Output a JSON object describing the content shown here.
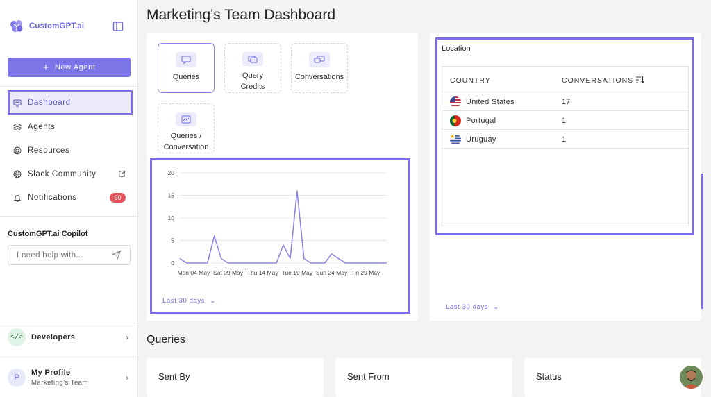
{
  "brand": {
    "name": "CustomGPT.ai"
  },
  "sidebar": {
    "new_agent_label": "New Agent",
    "items": [
      {
        "label": "Dashboard",
        "icon": "dashboard-icon",
        "active": true
      },
      {
        "label": "Agents",
        "icon": "layers-icon"
      },
      {
        "label": "Resources",
        "icon": "lifebuoy-icon"
      },
      {
        "label": "Slack Community",
        "icon": "globe-icon",
        "external": true
      },
      {
        "label": "Notifications",
        "icon": "bell-icon",
        "badge": "90"
      }
    ],
    "copilot": {
      "title": "CustomGPT.ai Copilot",
      "placeholder": "I need help with..."
    },
    "developers": {
      "label": "Developers",
      "icon": "code-icon"
    },
    "profile": {
      "initial": "P",
      "name": "My Profile",
      "team": "Marketing's Team"
    }
  },
  "main": {
    "title": "Marketing's Team Dashboard",
    "metrics": [
      {
        "label": "Queries",
        "selected": true
      },
      {
        "label": "Query Credits"
      },
      {
        "label": "Conversations"
      },
      {
        "label": "Queries / Conversation"
      }
    ],
    "chart_range": "Last 30 days",
    "location": {
      "title": "Location",
      "col_country": "COUNTRY",
      "col_conversations": "CONVERSATIONS",
      "rows": [
        {
          "country": "United States",
          "count": "17",
          "flag": "us-flag-icon"
        },
        {
          "country": "Portugal",
          "count": "1",
          "flag": "pt-flag-icon"
        },
        {
          "country": "Uruguay",
          "count": "1",
          "flag": "uy-flag-icon"
        }
      ],
      "range": "Last 30 days"
    },
    "queries_section": {
      "title": "Queries",
      "cards": [
        "Sent By",
        "Sent From",
        "Status"
      ]
    }
  },
  "colors": {
    "accent": "#7a6fe8",
    "badge": "#e4535a",
    "line": "#8b86e0"
  },
  "chart_data": {
    "type": "line",
    "x": [
      "May 02",
      "May 03",
      "May 04",
      "May 05",
      "May 06",
      "May 07",
      "May 08",
      "May 09",
      "May 10",
      "May 11",
      "May 12",
      "May 13",
      "May 14",
      "May 15",
      "May 16",
      "May 17",
      "May 18",
      "May 19",
      "May 20",
      "May 21",
      "May 22",
      "May 23",
      "May 24",
      "May 25",
      "May 26",
      "May 27",
      "May 28",
      "May 29",
      "May 30",
      "May 31",
      "Jun 01"
    ],
    "series": [
      {
        "values": [
          1,
          0,
          0,
          0,
          0,
          6,
          1,
          0,
          0,
          0,
          0,
          0,
          0,
          0,
          0,
          4,
          1,
          16,
          1,
          0,
          0,
          0,
          2,
          1,
          0,
          0,
          0,
          0,
          0,
          0,
          0
        ]
      }
    ],
    "xticks": [
      "Mon 04 May",
      "Sat 09 May",
      "Thu 14 May",
      "Tue 19 May",
      "Sun 24 May",
      "Fri 29 May"
    ],
    "yticks": [
      0,
      5,
      10,
      15,
      20
    ],
    "ylim": [
      0,
      20
    ],
    "grid": true
  }
}
